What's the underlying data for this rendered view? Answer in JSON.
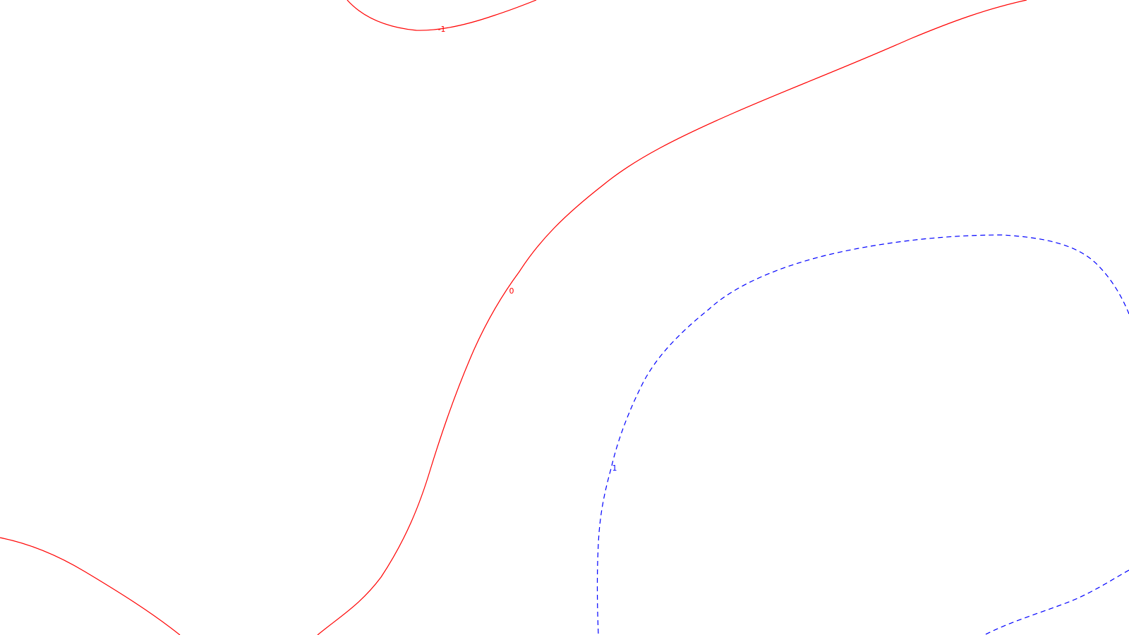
{
  "contours": {
    "colors": {
      "negative_zero": "#ff0000",
      "positive": "#0000ff"
    },
    "levels": [
      {
        "label": "-1",
        "color": "#ff0000",
        "style": "solid"
      },
      {
        "label": "0",
        "color": "#ff0000",
        "style": "solid"
      },
      {
        "label": "1",
        "color": "#0000ff",
        "style": "dashed"
      }
    ]
  }
}
